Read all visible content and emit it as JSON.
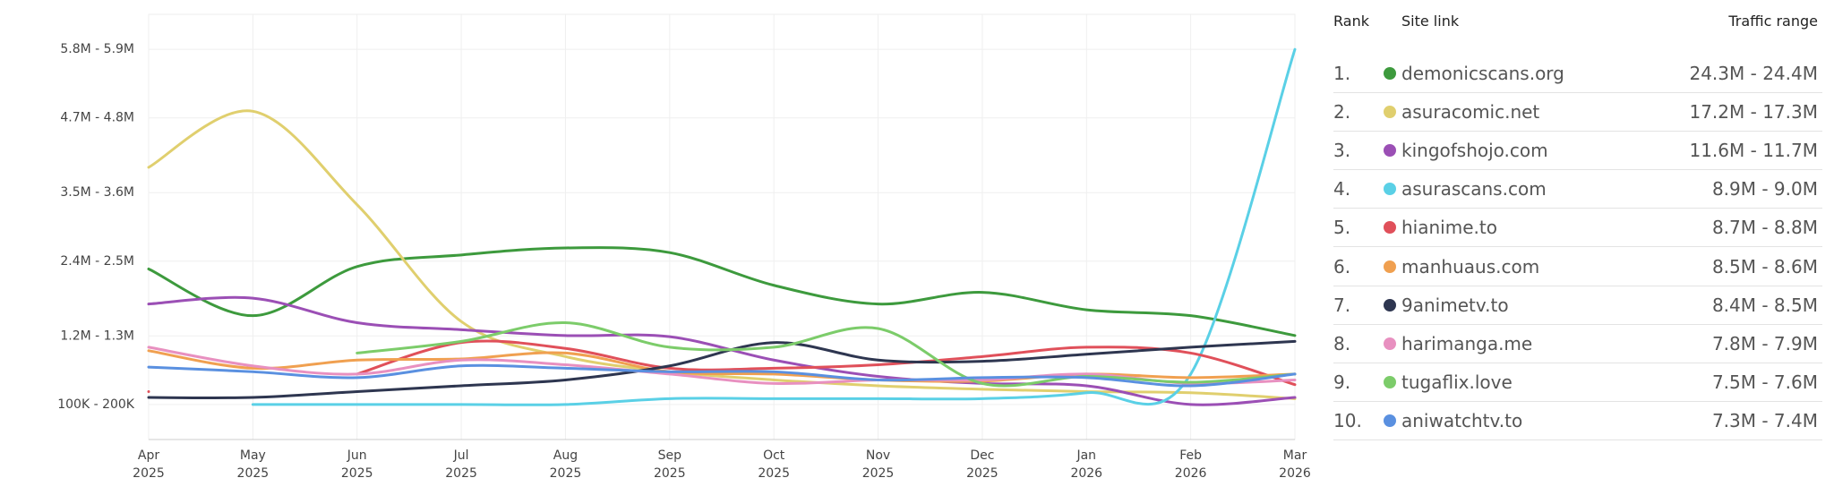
{
  "chart_data": {
    "type": "line",
    "categories": [
      "Apr 2025",
      "May 2025",
      "Jun 2025",
      "Jul 2025",
      "Aug 2025",
      "Sep 2025",
      "Oct 2025",
      "Nov 2025",
      "Dec 2025",
      "Jan 2026",
      "Feb 2026",
      "Mar 2026"
    ],
    "ylim": [
      -412500,
      6412500
    ],
    "yticks": [
      {
        "value": 150000,
        "label": "100K - 200K"
      },
      {
        "value": 1250000,
        "label": "1.2M - 1.3M"
      },
      {
        "value": 2450000,
        "label": "2.4M - 2.5M"
      },
      {
        "value": 3550000,
        "label": "3.5M - 3.6M"
      },
      {
        "value": 4750000,
        "label": "4.7M - 4.8M"
      },
      {
        "value": 5850000,
        "label": "5.8M - 5.9M"
      }
    ],
    "grid": true,
    "series": [
      {
        "name": "demonicscans.org",
        "color": "#3d9a3d",
        "values": [
          2325000,
          1575000,
          2362500,
          2550000,
          2662500,
          2587500,
          2062500,
          1762500,
          1950000,
          1668750,
          1575000,
          1256250
        ]
      },
      {
        "name": "asuracomic.net",
        "color": "#e0cf6e",
        "values": [
          3956250,
          4856250,
          3356250,
          1481250,
          918750,
          675000,
          543750,
          450000,
          393750,
          356250,
          337500,
          243750
        ]
      },
      {
        "name": "kingofshojo.com",
        "color": "#9b4fb5",
        "values": [
          1762500,
          1856250,
          1462500,
          1350000,
          1256250,
          1237500,
          862500,
          600000,
          487500,
          450000,
          150000,
          262500
        ]
      },
      {
        "name": "asurascans.com",
        "color": "#5ad0e6",
        "values": [
          null,
          150000,
          150000,
          150000,
          150000,
          243750,
          243750,
          243750,
          243750,
          337500,
          637500,
          5850000
        ]
      },
      {
        "name": "hianime.to",
        "color": "#e0505a",
        "values": [
          356250,
          null,
          637500,
          1143750,
          1050000,
          731250,
          731250,
          787500,
          918750,
          1068750,
          975000,
          468750
        ]
      },
      {
        "name": "manhuaus.com",
        "color": "#f0a050",
        "values": [
          1012500,
          731250,
          862500,
          881250,
          975000,
          675000,
          637500,
          543750,
          525000,
          637500,
          581250,
          637500
        ]
      },
      {
        "name": "9animetv.to",
        "color": "#2e3650",
        "values": [
          262500,
          262500,
          356250,
          450000,
          543750,
          768750,
          1143750,
          862500,
          843750,
          956250,
          1068750,
          1162500
        ]
      },
      {
        "name": "harimanga.me",
        "color": "#e890c0",
        "values": [
          1068750,
          768750,
          637500,
          862500,
          787500,
          637500,
          487500,
          543750,
          543750,
          637500,
          487500,
          543750
        ]
      },
      {
        "name": "tugaflix.love",
        "color": "#7ccc6a",
        "values": [
          null,
          null,
          975000,
          1162500,
          1462500,
          1068750,
          1068750,
          1368750,
          487500,
          600000,
          506250,
          637500
        ]
      },
      {
        "name": "aniwatchtv.to",
        "color": "#5a90e0",
        "values": [
          750000,
          675000,
          581250,
          768750,
          731250,
          675000,
          675000,
          543750,
          581250,
          581250,
          450000,
          637500
        ]
      }
    ]
  },
  "ranking": {
    "columns": [
      "Rank",
      "Site link",
      "Traffic range"
    ],
    "rows": [
      {
        "rank": "1.",
        "traffic": "24.3M - 24.4M"
      },
      {
        "rank": "2.",
        "traffic": "17.2M - 17.3M"
      },
      {
        "rank": "3.",
        "traffic": "11.6M - 11.7M"
      },
      {
        "rank": "4.",
        "traffic": "8.9M - 9.0M"
      },
      {
        "rank": "5.",
        "traffic": "8.7M - 8.8M"
      },
      {
        "rank": "6.",
        "traffic": "8.5M - 8.6M"
      },
      {
        "rank": "7.",
        "traffic": "8.4M - 8.5M"
      },
      {
        "rank": "8.",
        "traffic": "7.8M - 7.9M"
      },
      {
        "rank": "9.",
        "traffic": "7.5M - 7.6M"
      },
      {
        "rank": "10.",
        "traffic": "7.3M - 7.4M"
      }
    ]
  }
}
